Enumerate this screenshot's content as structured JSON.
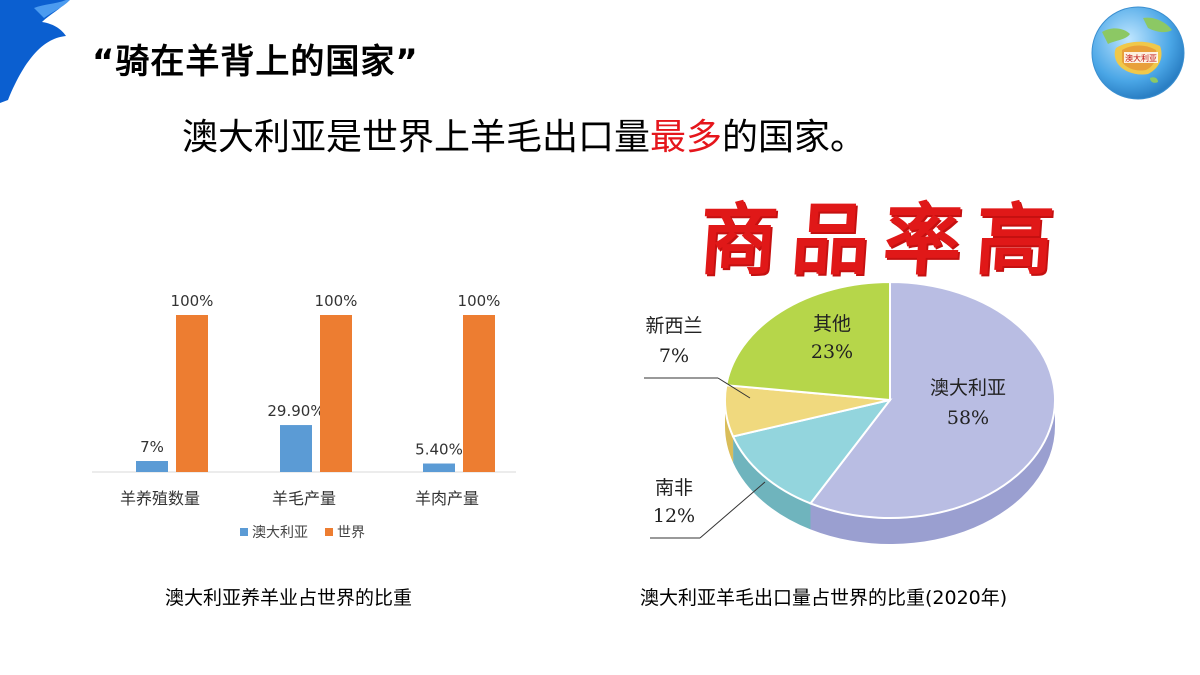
{
  "heading": "“骑在羊背上的国家”",
  "statement": {
    "before": "澳大利亚是世界上羊毛出口量",
    "highlight": "最多",
    "after": "的国家。"
  },
  "slogan": "商品率高",
  "globe_label": "澳大利亚",
  "colors": {
    "accent_blue": "#1a6fd6",
    "highlight_red": "#e5161c",
    "australia_bar": "#5b9bd5",
    "world_bar": "#ed7d31"
  },
  "chart_data": [
    {
      "type": "bar",
      "title": "",
      "categories": [
        "羊养殖数量",
        "羊毛产量",
        "羊肉产量"
      ],
      "series": [
        {
          "name": "澳大利亚",
          "values": [
            7,
            29.9,
            5.4
          ],
          "labels": [
            "7%",
            "29.90%",
            "5.40%"
          ],
          "color": "#5b9bd5"
        },
        {
          "name": "世界",
          "values": [
            100,
            100,
            100
          ],
          "labels": [
            "100%",
            "100%",
            "100%"
          ],
          "color": "#ed7d31"
        }
      ],
      "ylim": [
        0,
        100
      ],
      "grid": false,
      "legend": "bottom",
      "caption": "澳大利亚养羊业占世界的比重"
    },
    {
      "type": "pie",
      "title": "",
      "slices": [
        {
          "name": "澳大利亚",
          "value": 58,
          "label": "58%",
          "color": "#b9bde3",
          "side": "#9a9fd0"
        },
        {
          "name": "南非",
          "value": 12,
          "label": "12%",
          "color": "#93d5dd",
          "side": "#6fb4bd"
        },
        {
          "name": "新西兰",
          "value": 7,
          "label": "7%",
          "color": "#f0d97e",
          "side": "#d9bd5a"
        },
        {
          "name": "其他",
          "value": 23,
          "label": "23%",
          "color": "#b6d64a",
          "side": "#95b432"
        }
      ],
      "caption": "澳大利亚羊毛出口量占世界的比重(2020年)"
    }
  ]
}
